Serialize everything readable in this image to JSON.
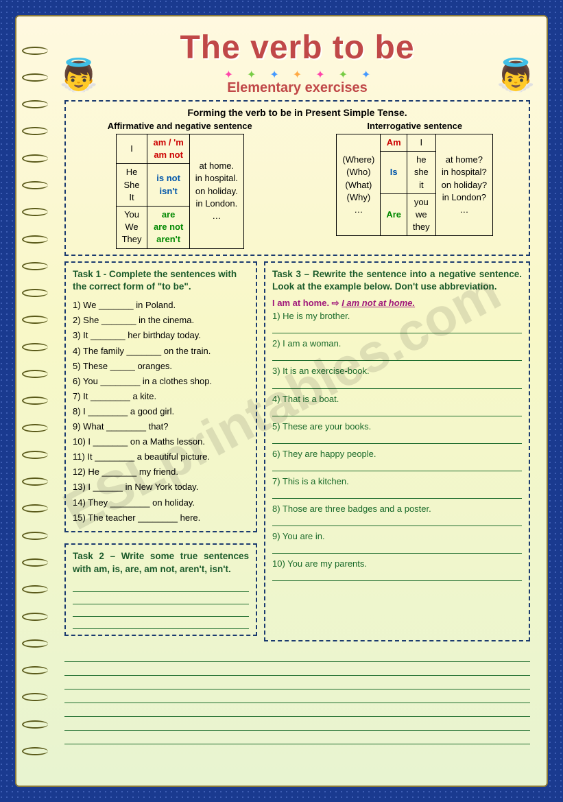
{
  "header": {
    "title": "The verb to be",
    "subtitle": "Elementary exercises"
  },
  "formation": {
    "heading": "Forming the verb to be in Present Simple Tense.",
    "affirmative": {
      "label": "Affirmative and negative sentence",
      "col1": {
        "r1": "I",
        "r2": "He\nShe\nIt",
        "r3": "You\nWe\nThey"
      },
      "col2": {
        "r1": "am / 'm\nam not",
        "r2": "is not\nisn't",
        "r3": "are\nare not\naren't"
      },
      "col3": "at home.\nin hospital.\non holiday.\nin London.\n…"
    },
    "interrogative": {
      "label": "Interrogative sentence",
      "col1": "(Where)\n(Who)\n(What)\n(Why)\n…",
      "col2": {
        "r1": "Am",
        "r2": "Is",
        "r3": "Are"
      },
      "col3": {
        "r1": "I",
        "r2": "he\nshe\nit",
        "r3": "you\nwe\nthey"
      },
      "col4": "at home?\nin hospital?\non holiday?\nin London?\n…"
    }
  },
  "task1": {
    "heading": "Task 1 - Complete the sentences with the correct form of \"to be\".",
    "items": [
      "1) We _______ in Poland.",
      "2) She _______ in the cinema.",
      "3) It _______ her birthday today.",
      "4) The family _______ on the train.",
      "5) These _____ oranges.",
      "6) You ________ in a clothes shop.",
      "7) It ________ a kite.",
      "8) I ________ a good girl.",
      "9) What ________ that?",
      "10) I _______ on a Maths lesson.",
      "11) It ________ a beautiful picture.",
      "12) He _______ my friend.",
      "13) I ______ in New York today.",
      "14) They ________ on holiday.",
      "15) The teacher ________ here."
    ]
  },
  "task2": {
    "heading": "Task 2 – Write some true sentences with am, is, are, am not, aren't, isn't.",
    "blank_lines": 4
  },
  "task3": {
    "heading": "Task 3 – Rewrite the sentence into a negative sentence. Look at the example below. Don't use abbreviation.",
    "example_in": "I am at home.",
    "example_out": "I am not at home.",
    "items": [
      "1)  He is my brother.",
      "2)  I am a woman.",
      "3)  It is an exercise-book.",
      "4)  That is a boat.",
      "5)  These are your books.",
      "6)  They are happy people.",
      "7)  This is a kitchen.",
      "8)  Those are three badges and a poster.",
      "9)  You are in.",
      "10) You are my parents."
    ]
  },
  "bottom_blank_lines": 7,
  "watermark": "ESLprintables.com",
  "colors": {
    "page_bg": "#1a3a8f",
    "paper_top": "#fff9e0",
    "paper_bottom": "#e8f4d0",
    "title": "#c04848",
    "dash_border": "#1a3a6f",
    "green_text": "#1a6a2a",
    "red": "#c00",
    "blue": "#05a",
    "green": "#080",
    "example": "#a0187a"
  }
}
